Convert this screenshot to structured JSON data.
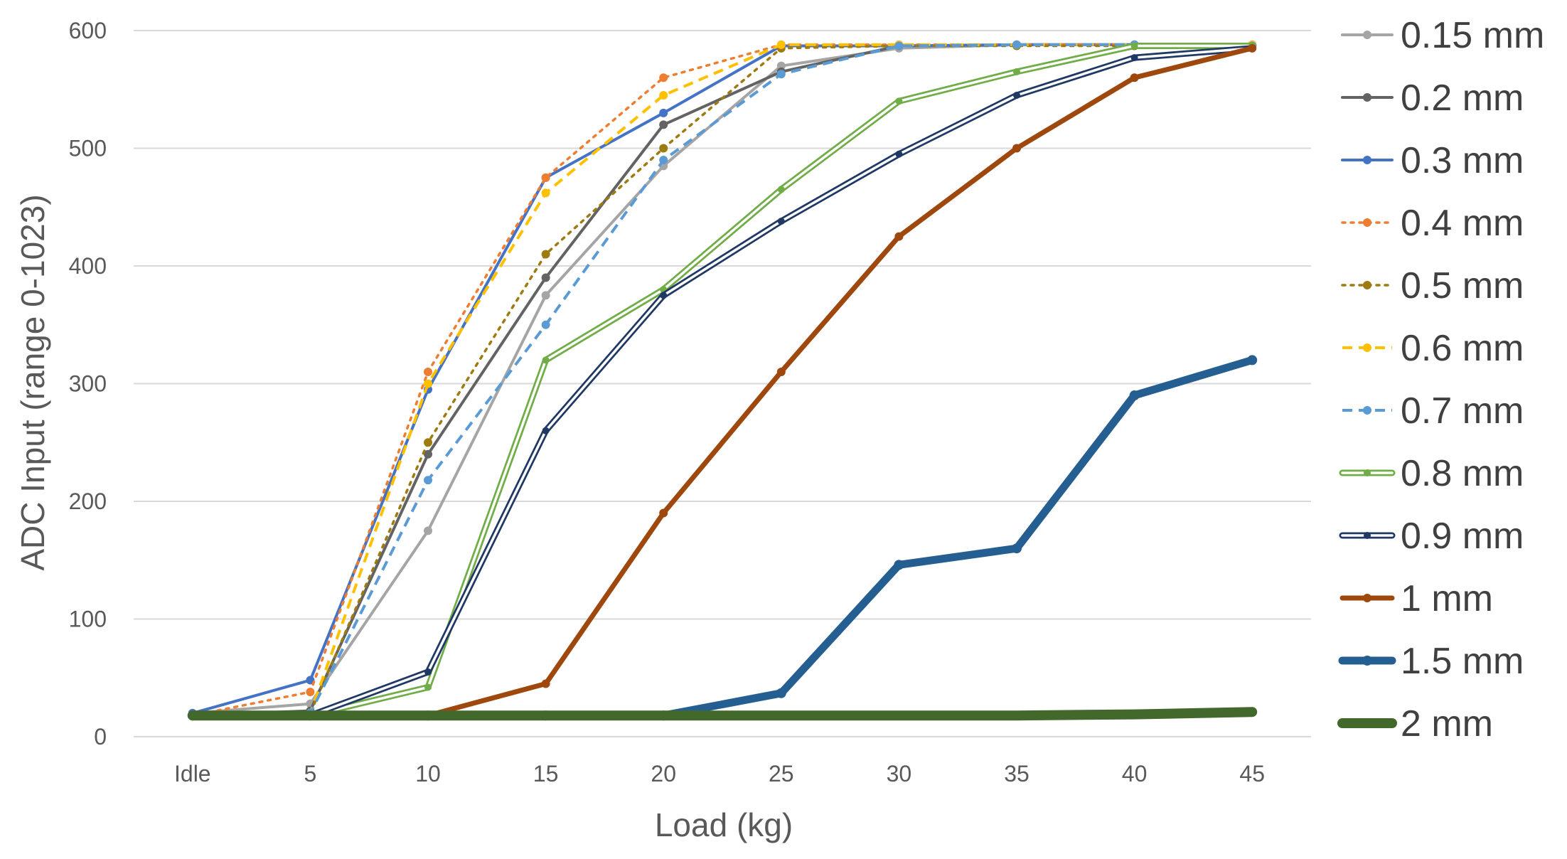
{
  "chart_data": {
    "type": "line",
    "title": "",
    "xlabel": "Load (kg)",
    "ylabel": "ADC Input (range 0-1023)",
    "categories": [
      "Idle",
      "5",
      "10",
      "15",
      "20",
      "25",
      "30",
      "35",
      "40",
      "45"
    ],
    "ylim": [
      0,
      600
    ],
    "yticks": [
      0,
      100,
      200,
      300,
      400,
      500,
      600
    ],
    "grid": true,
    "legend_position": "right",
    "series": [
      {
        "name": "0.15 mm",
        "color": "#A5A5A5",
        "style": "solid",
        "values": [
          20,
          28,
          175,
          375,
          485,
          570,
          585,
          588,
          588,
          588
        ]
      },
      {
        "name": "0.2 mm",
        "color": "#636363",
        "style": "solid",
        "values": [
          18,
          22,
          240,
          390,
          520,
          565,
          587,
          588,
          588,
          587
        ]
      },
      {
        "name": "0.3 mm",
        "color": "#4472C4",
        "style": "solid",
        "values": [
          20,
          48,
          295,
          475,
          530,
          587,
          587,
          588,
          588,
          587
        ]
      },
      {
        "name": "0.4 mm",
        "color": "#ED7D31",
        "style": "dotted",
        "values": [
          18,
          38,
          310,
          475,
          560,
          588,
          588,
          588,
          588,
          588
        ]
      },
      {
        "name": "0.5 mm",
        "color": "#9E7B10",
        "style": "dotted",
        "values": [
          18,
          20,
          250,
          410,
          500,
          585,
          587,
          587,
          587,
          587
        ]
      },
      {
        "name": "0.6 mm",
        "color": "#FFC000",
        "style": "dashed",
        "values": [
          18,
          20,
          300,
          462,
          545,
          588,
          588,
          588,
          588,
          588
        ]
      },
      {
        "name": "0.7  mm",
        "color": "#5B9BD5",
        "style": "dashed",
        "values": [
          18,
          20,
          218,
          350,
          490,
          563,
          587,
          588,
          588,
          587
        ]
      },
      {
        "name": "0.8  mm",
        "color": "#70AD47",
        "style": "double",
        "values": [
          18,
          18,
          42,
          320,
          380,
          465,
          540,
          565,
          587,
          587
        ]
      },
      {
        "name": "0.9  mm",
        "color": "#1F3864",
        "style": "double",
        "values": [
          18,
          18,
          55,
          260,
          375,
          438,
          495,
          545,
          577,
          585
        ]
      },
      {
        "name": "1 mm",
        "color": "#9E480E",
        "style": "thick",
        "values": [
          18,
          18,
          18,
          45,
          190,
          310,
          425,
          500,
          560,
          585
        ]
      },
      {
        "name": "1.5  mm",
        "color": "#255E91",
        "style": "heavy",
        "values": [
          18,
          18,
          18,
          18,
          18,
          37,
          146,
          160,
          290,
          320
        ]
      },
      {
        "name": "2 mm",
        "color": "#43682B",
        "style": "heaviest",
        "values": [
          18,
          18,
          18,
          18,
          18,
          18,
          18,
          18,
          19,
          21
        ]
      }
    ]
  }
}
